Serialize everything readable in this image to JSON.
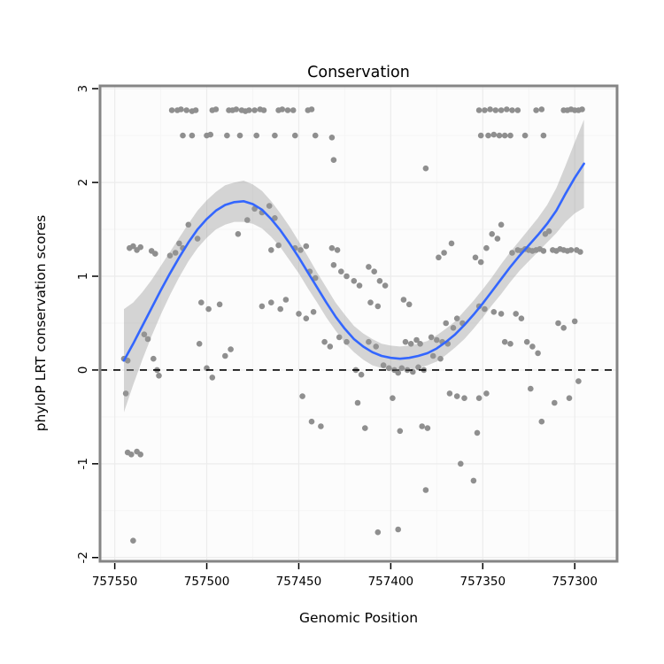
{
  "chart_data": {
    "type": "scatter",
    "title": "Conservation",
    "xlabel": "Genomic Position",
    "ylabel": "phyloP LRT conservation scores",
    "x_axis": {
      "reversed": true,
      "domain": [
        757558,
        757277
      ],
      "ticks": [
        757550,
        757500,
        757450,
        757400,
        757350,
        757300
      ],
      "tick_labels": [
        "757550",
        "757500",
        "757450",
        "757400",
        "757350",
        "757300"
      ],
      "minor_ticks": [
        757525,
        757475,
        757425,
        757375,
        757325
      ]
    },
    "y_axis": {
      "domain": [
        -2.04,
        3.03
      ],
      "ticks": [
        -2,
        -1,
        0,
        1,
        2,
        3
      ],
      "tick_labels": [
        "-2",
        "-1",
        "0",
        "1",
        "2",
        "3"
      ],
      "minor_ticks": [
        -1.5,
        -0.5,
        0.5,
        1.5,
        2.5
      ]
    },
    "hline": {
      "y": 0,
      "style": "dashed"
    },
    "colors": {
      "point": "#8f8f8f",
      "line": "#3366FF",
      "band": "#999999",
      "band_opacity": 0.4,
      "grid_major": "#ececec",
      "grid_minor": "#f5f5f5",
      "panel": "#fcfcfc",
      "border": "#858585",
      "zero_line": "#000000"
    },
    "points": [
      [
        757519,
        2.77
      ],
      [
        757516,
        2.77
      ],
      [
        757514,
        2.78
      ],
      [
        757511,
        2.77
      ],
      [
        757508,
        2.76
      ],
      [
        757506,
        2.77
      ],
      [
        757497,
        2.77
      ],
      [
        757495,
        2.78
      ],
      [
        757488,
        2.77
      ],
      [
        757486,
        2.77
      ],
      [
        757484,
        2.78
      ],
      [
        757481,
        2.77
      ],
      [
        757479,
        2.76
      ],
      [
        757477,
        2.77
      ],
      [
        757474,
        2.77
      ],
      [
        757471,
        2.78
      ],
      [
        757469,
        2.77
      ],
      [
        757461,
        2.77
      ],
      [
        757459,
        2.78
      ],
      [
        757456,
        2.77
      ],
      [
        757453,
        2.77
      ],
      [
        757445,
        2.77
      ],
      [
        757443,
        2.78
      ],
      [
        757352,
        2.77
      ],
      [
        757349,
        2.77
      ],
      [
        757346,
        2.78
      ],
      [
        757343,
        2.77
      ],
      [
        757340,
        2.77
      ],
      [
        757337,
        2.78
      ],
      [
        757334,
        2.77
      ],
      [
        757331,
        2.77
      ],
      [
        757321,
        2.77
      ],
      [
        757318,
        2.78
      ],
      [
        757306,
        2.77
      ],
      [
        757304,
        2.77
      ],
      [
        757302,
        2.78
      ],
      [
        757300,
        2.77
      ],
      [
        757298,
        2.77
      ],
      [
        757296,
        2.78
      ],
      [
        757513,
        2.5
      ],
      [
        757508,
        2.5
      ],
      [
        757500,
        2.5
      ],
      [
        757498,
        2.51
      ],
      [
        757489,
        2.5
      ],
      [
        757482,
        2.5
      ],
      [
        757473,
        2.5
      ],
      [
        757463,
        2.5
      ],
      [
        757452,
        2.5
      ],
      [
        757441,
        2.5
      ],
      [
        757351,
        2.5
      ],
      [
        757347,
        2.5
      ],
      [
        757344,
        2.51
      ],
      [
        757341,
        2.5
      ],
      [
        757338,
        2.5
      ],
      [
        757335,
        2.5
      ],
      [
        757327,
        2.5
      ],
      [
        757317,
        2.5
      ],
      [
        757432,
        2.48
      ],
      [
        757431,
        2.24
      ],
      [
        757381,
        2.15
      ],
      [
        757545,
        0.12
      ],
      [
        757543,
        0.1
      ],
      [
        757544,
        -0.25
      ],
      [
        757543,
        -0.88
      ],
      [
        757541,
        -0.9
      ],
      [
        757538,
        -0.87
      ],
      [
        757536,
        -0.9
      ],
      [
        757540,
        -1.82
      ],
      [
        757542,
        1.3
      ],
      [
        757540,
        1.32
      ],
      [
        757538,
        1.28
      ],
      [
        757536,
        1.31
      ],
      [
        757530,
        1.27
      ],
      [
        757528,
        1.24
      ],
      [
        757534,
        0.38
      ],
      [
        757532,
        0.33
      ],
      [
        757529,
        0.12
      ],
      [
        757527,
        0.0
      ],
      [
        757526,
        -0.06
      ],
      [
        757520,
        1.22
      ],
      [
        757517,
        1.25
      ],
      [
        757515,
        1.35
      ],
      [
        757513,
        1.3
      ],
      [
        757510,
        1.55
      ],
      [
        757505,
        1.4
      ],
      [
        757503,
        0.72
      ],
      [
        757499,
        0.65
      ],
      [
        757504,
        0.28
      ],
      [
        757500,
        0.02
      ],
      [
        757497,
        -0.08
      ],
      [
        757493,
        0.7
      ],
      [
        757490,
        0.15
      ],
      [
        757487,
        0.22
      ],
      [
        757483,
        1.45
      ],
      [
        757478,
        1.6
      ],
      [
        757474,
        1.72
      ],
      [
        757470,
        1.68
      ],
      [
        757466,
        1.75
      ],
      [
        757463,
        1.62
      ],
      [
        757465,
        1.28
      ],
      [
        757461,
        1.33
      ],
      [
        757470,
        0.68
      ],
      [
        757465,
        0.72
      ],
      [
        757460,
        0.65
      ],
      [
        757457,
        0.75
      ],
      [
        757452,
        1.3
      ],
      [
        757449,
        1.28
      ],
      [
        757446,
        1.32
      ],
      [
        757444,
        1.05
      ],
      [
        757441,
        0.98
      ],
      [
        757450,
        0.6
      ],
      [
        757446,
        0.55
      ],
      [
        757442,
        0.62
      ],
      [
        757448,
        -0.28
      ],
      [
        757443,
        -0.55
      ],
      [
        757438,
        -0.6
      ],
      [
        757436,
        0.3
      ],
      [
        757433,
        0.25
      ],
      [
        757432,
        1.3
      ],
      [
        757429,
        1.28
      ],
      [
        757431,
        1.12
      ],
      [
        757427,
        1.05
      ],
      [
        757424,
        1.0
      ],
      [
        757420,
        0.95
      ],
      [
        757417,
        0.9
      ],
      [
        757428,
        0.35
      ],
      [
        757424,
        0.3
      ],
      [
        757419,
        0.0
      ],
      [
        757416,
        -0.05
      ],
      [
        757418,
        -0.35
      ],
      [
        757414,
        -0.62
      ],
      [
        757412,
        1.1
      ],
      [
        757409,
        1.05
      ],
      [
        757406,
        0.95
      ],
      [
        757403,
        0.9
      ],
      [
        757412,
        0.3
      ],
      [
        757408,
        0.25
      ],
      [
        757411,
        0.72
      ],
      [
        757407,
        0.68
      ],
      [
        757404,
        0.05
      ],
      [
        757401,
        0.02
      ],
      [
        757398,
        0.0
      ],
      [
        757396,
        -0.03
      ],
      [
        757399,
        -0.3
      ],
      [
        757395,
        -0.65
      ],
      [
        757407,
        -1.73
      ],
      [
        757396,
        -1.7
      ],
      [
        757393,
        0.75
      ],
      [
        757390,
        0.7
      ],
      [
        757392,
        0.3
      ],
      [
        757389,
        0.28
      ],
      [
        757386,
        0.32
      ],
      [
        757384,
        0.28
      ],
      [
        757394,
        0.02
      ],
      [
        757391,
        0.0
      ],
      [
        757388,
        -0.02
      ],
      [
        757385,
        0.03
      ],
      [
        757382,
        0.0
      ],
      [
        757383,
        -0.6
      ],
      [
        757380,
        -0.62
      ],
      [
        757381,
        -1.28
      ],
      [
        757378,
        0.35
      ],
      [
        757375,
        0.32
      ],
      [
        757372,
        0.3
      ],
      [
        757369,
        0.28
      ],
      [
        757377,
        0.15
      ],
      [
        757373,
        0.12
      ],
      [
        757370,
        0.5
      ],
      [
        757366,
        0.45
      ],
      [
        757364,
        0.55
      ],
      [
        757361,
        0.5
      ],
      [
        757368,
        -0.25
      ],
      [
        757364,
        -0.28
      ],
      [
        757360,
        -0.3
      ],
      [
        757362,
        -1.0
      ],
      [
        757355,
        -1.18
      ],
      [
        757374,
        1.2
      ],
      [
        757371,
        1.25
      ],
      [
        757367,
        1.35
      ],
      [
        757354,
        1.2
      ],
      [
        757351,
        1.15
      ],
      [
        757348,
        1.3
      ],
      [
        757345,
        1.45
      ],
      [
        757342,
        1.4
      ],
      [
        757340,
        1.55
      ],
      [
        757352,
        0.68
      ],
      [
        757349,
        0.65
      ],
      [
        757344,
        0.62
      ],
      [
        757340,
        0.6
      ],
      [
        757338,
        0.3
      ],
      [
        757335,
        0.28
      ],
      [
        757352,
        -0.3
      ],
      [
        757348,
        -0.25
      ],
      [
        757353,
        -0.67
      ],
      [
        757334,
        1.25
      ],
      [
        757331,
        1.28
      ],
      [
        757329,
        1.27
      ],
      [
        757327,
        1.29
      ],
      [
        757325,
        1.28
      ],
      [
        757323,
        1.27
      ],
      [
        757321,
        1.28
      ],
      [
        757319,
        1.29
      ],
      [
        757317,
        1.27
      ],
      [
        757332,
        0.6
      ],
      [
        757329,
        0.55
      ],
      [
        757326,
        0.3
      ],
      [
        757323,
        0.25
      ],
      [
        757320,
        0.18
      ],
      [
        757316,
        1.45
      ],
      [
        757314,
        1.48
      ],
      [
        757324,
        -0.2
      ],
      [
        757318,
        -0.55
      ],
      [
        757312,
        1.28
      ],
      [
        757310,
        1.27
      ],
      [
        757308,
        1.29
      ],
      [
        757306,
        1.28
      ],
      [
        757304,
        1.27
      ],
      [
        757302,
        1.28
      ],
      [
        757299,
        1.28
      ],
      [
        757297,
        1.26
      ],
      [
        757309,
        0.5
      ],
      [
        757306,
        0.45
      ],
      [
        757300,
        0.52
      ],
      [
        757303,
        -0.3
      ],
      [
        757298,
        -0.12
      ],
      [
        757311,
        -0.35
      ]
    ],
    "smooth": {
      "x": [
        757545,
        757540,
        757535,
        757530,
        757525,
        757520,
        757515,
        757510,
        757505,
        757500,
        757495,
        757490,
        757485,
        757480,
        757475,
        757470,
        757465,
        757460,
        757455,
        757450,
        757445,
        757440,
        757435,
        757430,
        757425,
        757420,
        757415,
        757410,
        757405,
        757400,
        757395,
        757390,
        757385,
        757380,
        757375,
        757370,
        757365,
        757360,
        757355,
        757350,
        757345,
        757340,
        757335,
        757330,
        757325,
        757320,
        757315,
        757310,
        757305,
        757300,
        757295
      ],
      "y": [
        0.1,
        0.28,
        0.47,
        0.66,
        0.85,
        1.03,
        1.2,
        1.36,
        1.5,
        1.61,
        1.7,
        1.76,
        1.79,
        1.8,
        1.77,
        1.71,
        1.61,
        1.49,
        1.35,
        1.2,
        1.04,
        0.88,
        0.72,
        0.57,
        0.44,
        0.33,
        0.25,
        0.19,
        0.15,
        0.13,
        0.12,
        0.13,
        0.15,
        0.18,
        0.23,
        0.3,
        0.38,
        0.48,
        0.59,
        0.71,
        0.84,
        0.97,
        1.1,
        1.22,
        1.33,
        1.44,
        1.56,
        1.7,
        1.88,
        2.05,
        2.2
      ],
      "se": [
        0.55,
        0.44,
        0.36,
        0.3,
        0.26,
        0.23,
        0.21,
        0.2,
        0.2,
        0.2,
        0.2,
        0.21,
        0.21,
        0.22,
        0.21,
        0.2,
        0.19,
        0.18,
        0.18,
        0.17,
        0.17,
        0.16,
        0.16,
        0.15,
        0.15,
        0.14,
        0.14,
        0.14,
        0.13,
        0.13,
        0.13,
        0.13,
        0.13,
        0.13,
        0.14,
        0.14,
        0.14,
        0.15,
        0.15,
        0.15,
        0.15,
        0.16,
        0.16,
        0.16,
        0.17,
        0.18,
        0.2,
        0.24,
        0.3,
        0.38,
        0.47
      ]
    }
  }
}
